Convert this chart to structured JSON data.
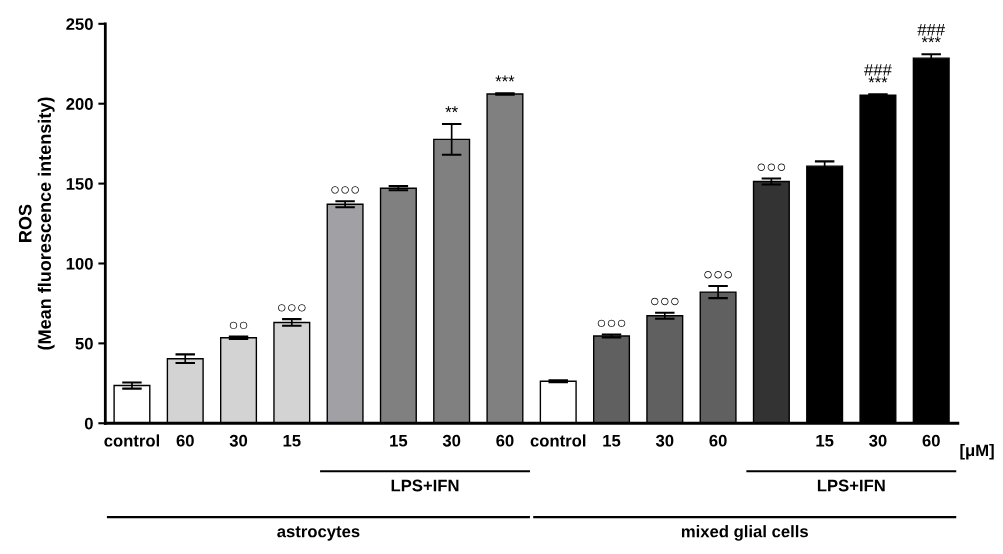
{
  "chart_data": {
    "type": "bar",
    "ylabel": "ROS\n(Mean fluorescence intensity)",
    "categories": [
      "control",
      "60",
      "30",
      "15",
      null,
      "15",
      "30",
      "60",
      "control",
      "15",
      "30",
      "60",
      null,
      "15",
      "30",
      "60"
    ],
    "values": [
      23.6,
      40.4,
      53.5,
      63.1,
      137.1,
      147.1,
      177.7,
      206.1,
      26.3,
      54.6,
      67.3,
      82.1,
      151.3,
      160.9,
      205.3,
      228.5
    ],
    "errors": [
      1.9,
      2.7,
      0.7,
      2.1,
      1.9,
      1.3,
      9.6,
      0.4,
      0.6,
      0.9,
      1.9,
      3.8,
      1.9,
      3.0,
      0.6,
      2.5
    ],
    "colors": [
      "#ffffff",
      "#d3d3d3",
      "#d3d3d3",
      "#d3d3d3",
      "#a0a0a5",
      "#808080",
      "#808080",
      "#808080",
      "#ffffff",
      "#606060",
      "#606060",
      "#606060",
      "#333333",
      "#000000",
      "#000000",
      "#000000"
    ],
    "value_labels": [
      null,
      null,
      "○○",
      "○○○",
      "○○○",
      null,
      "**",
      "***",
      null,
      "○○○",
      "○○○",
      "○○○",
      "○○○",
      null,
      "###\n***",
      "###\n***"
    ],
    "ylim": [
      0,
      250
    ],
    "yticks": [
      0,
      50,
      100,
      150,
      200,
      250
    ],
    "annotations": [
      "[μM]",
      "LPS+IFN",
      "astrocytes",
      "LPS+IFN",
      "mixed glial cells"
    ]
  }
}
